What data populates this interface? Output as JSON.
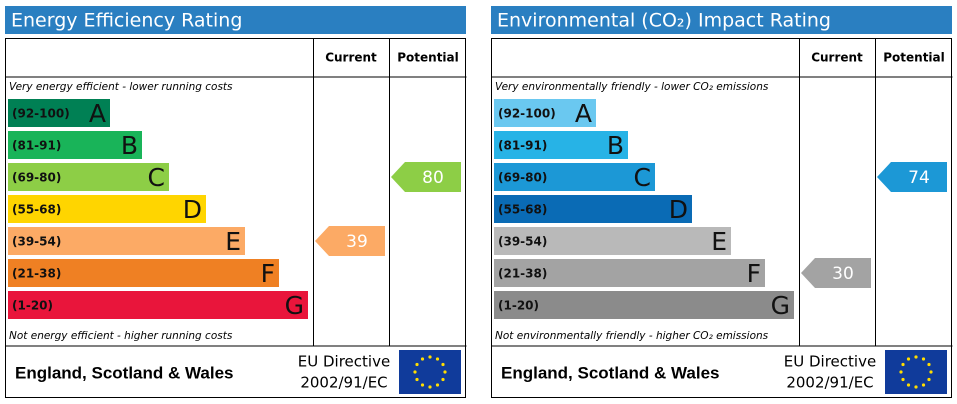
{
  "chart_data": [
    {
      "type": "epc",
      "title": "Energy Efficiency Rating",
      "current_label": "Current",
      "potential_label": "Potential",
      "top_note": "Very energy efficient - lower running costs",
      "bottom_note": "Not energy efficient - higher running costs",
      "bands": [
        {
          "label": "(92-100)",
          "letter": "A",
          "color": "#008054"
        },
        {
          "label": "(81-91)",
          "letter": "B",
          "color": "#19b459"
        },
        {
          "label": "(69-80)",
          "letter": "C",
          "color": "#8dce46"
        },
        {
          "label": "(55-68)",
          "letter": "D",
          "color": "#ffd500"
        },
        {
          "label": "(39-54)",
          "letter": "E",
          "color": "#fcaa65"
        },
        {
          "label": "(21-38)",
          "letter": "F",
          "color": "#ef8023"
        },
        {
          "label": "(1-20)",
          "letter": "G",
          "color": "#e9153b"
        }
      ],
      "current": 39,
      "potential": 80,
      "region": "England, Scotland & Wales",
      "directive": "EU Directive",
      "directive_code": "2002/91/EC"
    },
    {
      "type": "epc",
      "title": "Environmental (CO₂) Impact Rating",
      "current_label": "Current",
      "potential_label": "Potential",
      "top_note": "Very environmentally friendly - lower CO₂ emissions",
      "bottom_note": "Not environmentally friendly - higher CO₂ emissions",
      "bands": [
        {
          "label": "(92-100)",
          "letter": "A",
          "color": "#6ac8f0"
        },
        {
          "label": "(81-91)",
          "letter": "B",
          "color": "#27b3e6"
        },
        {
          "label": "(69-80)",
          "letter": "C",
          "color": "#1c98d6"
        },
        {
          "label": "(55-68)",
          "letter": "D",
          "color": "#0a6bb5"
        },
        {
          "label": "(39-54)",
          "letter": "E",
          "color": "#b9b9b9"
        },
        {
          "label": "(21-38)",
          "letter": "F",
          "color": "#a3a3a3"
        },
        {
          "label": "(1-20)",
          "letter": "G",
          "color": "#8b8b8b"
        }
      ],
      "current": 30,
      "potential": 74,
      "region": "England, Scotland & Wales",
      "directive": "EU Directive",
      "directive_code": "2002/91/EC"
    }
  ]
}
